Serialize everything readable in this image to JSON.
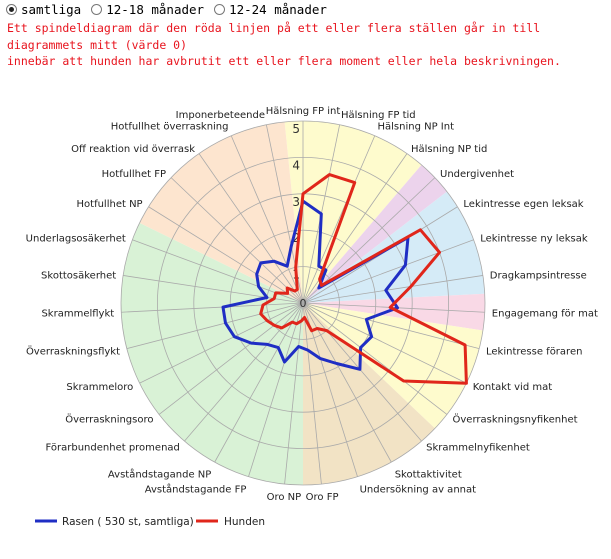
{
  "filter": {
    "options": [
      {
        "label": "samtliga",
        "selected": true
      },
      {
        "label": "12-18 månader",
        "selected": false
      },
      {
        "label": "12-24 månader",
        "selected": false
      }
    ]
  },
  "note": {
    "line1": "Ett spindeldiagram där den röda linjen på ett eller flera ställen går in till diagrammets mitt (värde 0)",
    "line2": "innebär att hunden har avbrutit ett eller flera moment eller hela beskrivningen."
  },
  "colors": {
    "rasen": "#1f2ec4",
    "hunden": "#e0261b",
    "grid": "#aaaaaa"
  },
  "chart_data": {
    "type": "radar",
    "max": 5,
    "rings": [
      1,
      2,
      3,
      4,
      5
    ],
    "ring_labels": [
      "1",
      "2",
      "3",
      "4",
      "5"
    ],
    "center_label": "0",
    "categories": [
      "Hälsning FP int",
      "Hälsning FP tid",
      "Hälsning NP Int",
      "Hälsning NP tid",
      "Undergivenhet",
      "Lekintresse egen leksak",
      "Lekintresse ny leksak",
      "Dragkampsintresse",
      "Engagemang för mat",
      "Lekintresse föraren",
      "Kontakt vid mat",
      "Överraskningsnyfikenhet",
      "Skrammelnyfikenhet",
      "Skottaktivitet",
      "Undersökning av annat",
      "Oro FP",
      "Oro NP",
      "Avståndstagande FP",
      "Avståndstagande NP",
      "Förarbundenhet promenad",
      "Överraskningsoro",
      "Skrammeloro",
      "Överraskningsflykt",
      "Skrammelflykt",
      "Skottosäkerhet",
      "Underlagsosäkerhet",
      "Hotfullhet NP",
      "Hotfullhet FP",
      "Off reaktion vid överrask",
      "Hotfullhet överraskning",
      "Imponerbeteende"
    ],
    "sectors": [
      {
        "from": 0,
        "to": 3,
        "color": "#fefbcd"
      },
      {
        "from": 4,
        "to": 4,
        "color": "#ecd3ec"
      },
      {
        "from": 5,
        "to": 7,
        "color": "#d5ebf7"
      },
      {
        "from": 8,
        "to": 8,
        "color": "#f9d9e6"
      },
      {
        "from": 9,
        "to": 11,
        "color": "#fefbcd"
      },
      {
        "from": 12,
        "to": 15,
        "color": "#f2e3c5"
      },
      {
        "from": 16,
        "to": 25,
        "color": "#d9f2d6"
      },
      {
        "from": 26,
        "to": 30,
        "color": "#fde5cf"
      }
    ],
    "series": [
      {
        "name": "Rasen ( 530 st, samtliga)",
        "values": [
          2.8,
          2.5,
          1.1,
          1.1,
          0.6,
          3.4,
          3.0,
          2.3,
          2.6,
          1.8,
          2.1,
          2.0,
          2.4,
          1.9,
          1.6,
          1.3,
          1.2,
          1.7,
          1.4,
          1.5,
          1.8,
          2.1,
          2.2,
          2.2,
          1.0,
          1.3,
          1.5,
          1.6,
          1.4,
          1.1,
          1.6
        ]
      },
      {
        "name": "Hunden",
        "values": [
          3.0,
          3.6,
          3.6,
          0.8,
          0.7,
          3.8,
          4.0,
          3.0,
          2.4,
          4.6,
          5.0,
          3.5,
          1.0,
          0.8,
          0.8,
          0.4,
          0.5,
          0.6,
          0.6,
          0.9,
          1.0,
          1.1,
          1.2,
          1.1,
          0.8,
          0.8,
          0.5,
          0.6,
          0.4,
          0.4,
          1.0
        ]
      }
    ]
  }
}
